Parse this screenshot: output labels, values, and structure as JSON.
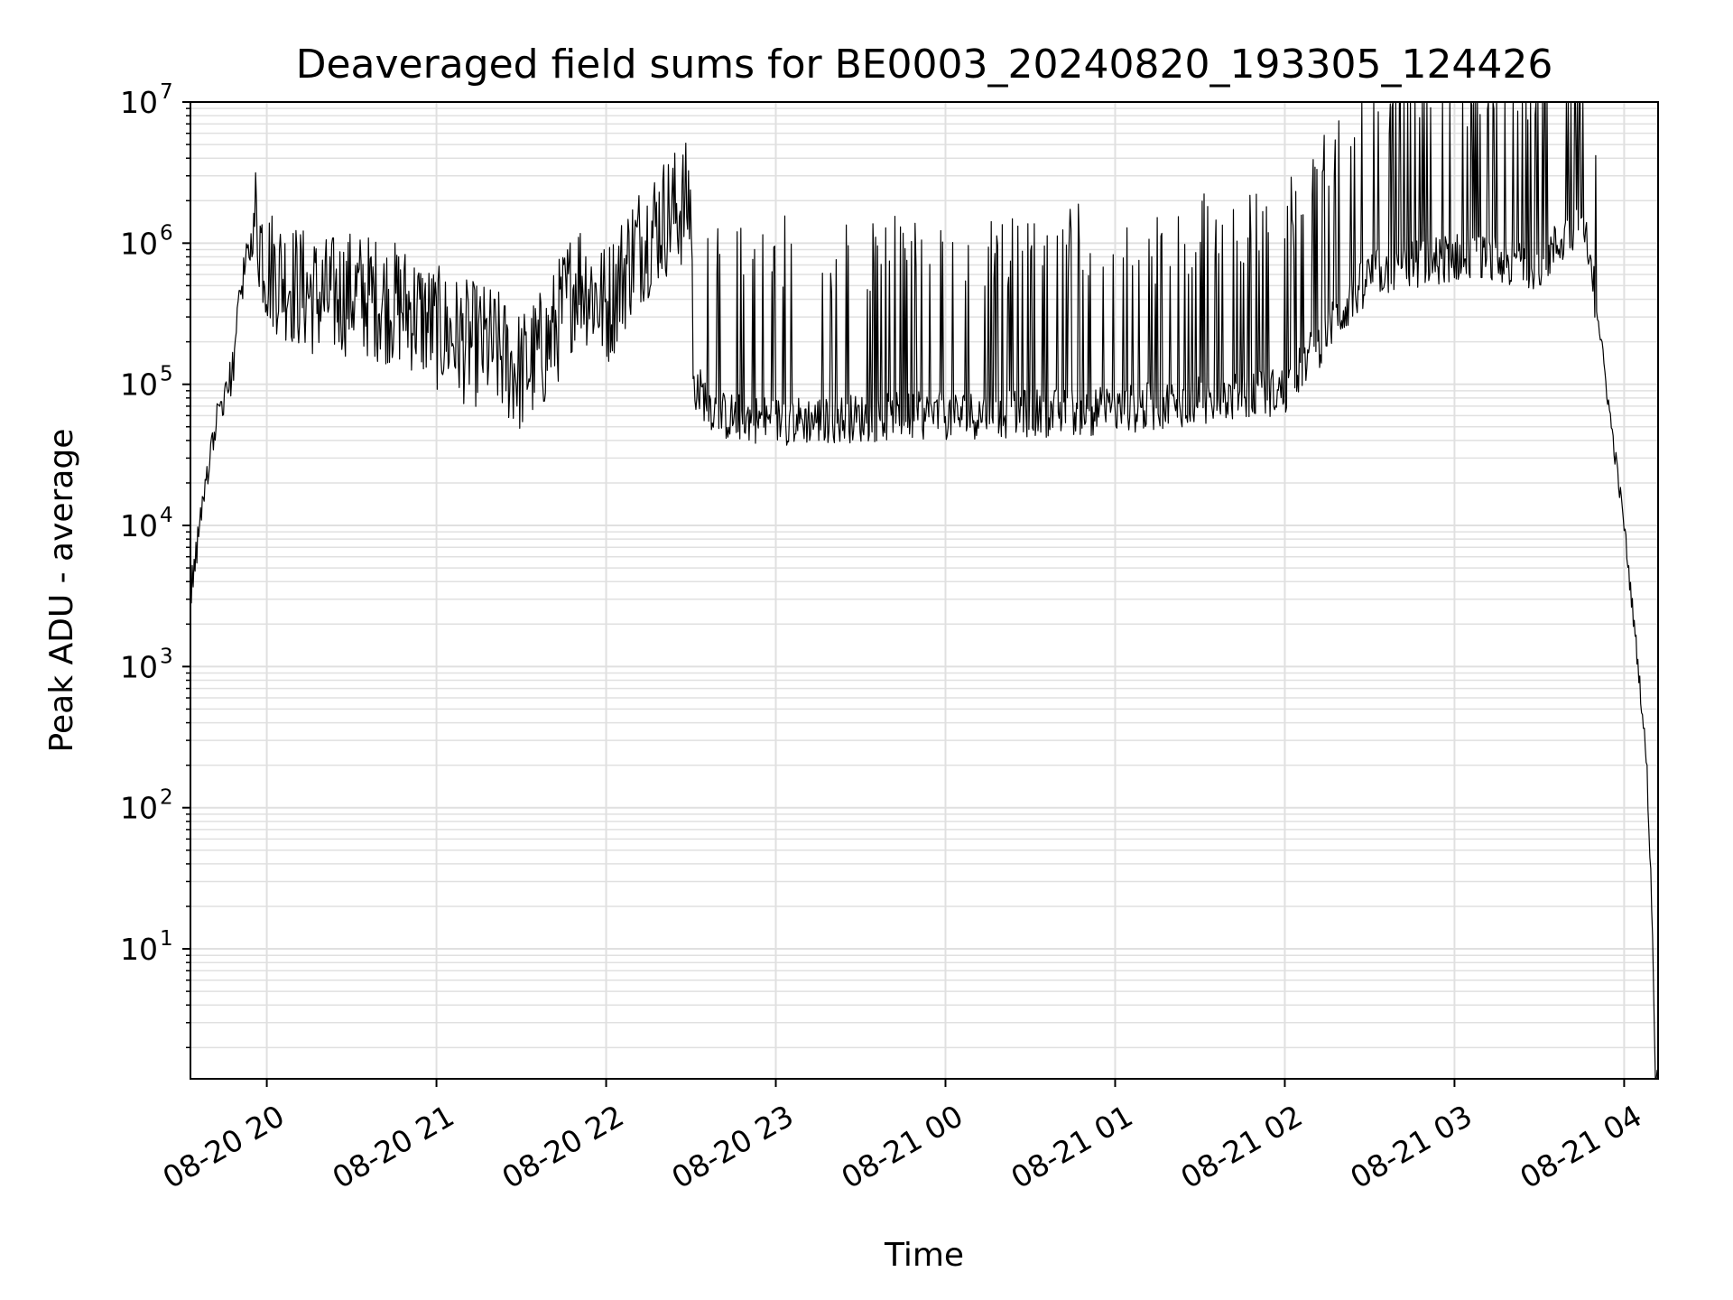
{
  "chart_data": {
    "type": "line",
    "title": "Deaveraged field sums for BE0003_20240820_193305_124426",
    "xlabel": "Time",
    "ylabel": "Peak ADU - average",
    "yscale": "log",
    "ylim": [
      1.2,
      10000000
    ],
    "xlim": [
      "2024-08-20 19:33",
      "2024-08-21 04:12"
    ],
    "grid": true,
    "line_color": "#000000",
    "grid_color": "#e0e0e0",
    "x_ticks": [
      {
        "label": "08-20 20",
        "t": "2024-08-20 20:00"
      },
      {
        "label": "08-20 21",
        "t": "2024-08-20 21:00"
      },
      {
        "label": "08-20 22",
        "t": "2024-08-20 22:00"
      },
      {
        "label": "08-20 23",
        "t": "2024-08-20 23:00"
      },
      {
        "label": "08-21 00",
        "t": "2024-08-21 00:00"
      },
      {
        "label": "08-21 01",
        "t": "2024-08-21 01:00"
      },
      {
        "label": "08-21 02",
        "t": "2024-08-21 02:00"
      },
      {
        "label": "08-21 03",
        "t": "2024-08-21 03:00"
      },
      {
        "label": "08-21 04",
        "t": "2024-08-21 04:00"
      }
    ],
    "y_ticks": [
      {
        "base": "10",
        "exp": "1",
        "value": 10
      },
      {
        "base": "10",
        "exp": "2",
        "value": 100
      },
      {
        "base": "10",
        "exp": "3",
        "value": 1000
      },
      {
        "base": "10",
        "exp": "4",
        "value": 10000
      },
      {
        "base": "10",
        "exp": "5",
        "value": 100000
      },
      {
        "base": "10",
        "exp": "6",
        "value": 1000000
      },
      {
        "base": "10",
        "exp": "7",
        "value": 10000000
      }
    ],
    "series": [
      {
        "points": [
          [
            "2024-08-20 19:33",
            3500
          ],
          [
            "2024-08-20 19:36",
            8000
          ],
          [
            "2024-08-20 19:39",
            20000
          ],
          [
            "2024-08-20 19:42",
            50000
          ],
          [
            "2024-08-20 19:45",
            90000
          ],
          [
            "2024-08-20 19:48",
            120000
          ],
          [
            "2024-08-20 19:51",
            500000
          ],
          [
            "2024-08-20 19:54",
            900000
          ],
          [
            "2024-08-20 19:56",
            1500000
          ],
          [
            "2024-08-20 20:00",
            700000
          ],
          [
            "2024-08-20 20:10",
            500000
          ],
          [
            "2024-08-20 20:20",
            400000
          ],
          [
            "2024-08-20 20:30",
            450000
          ],
          [
            "2024-08-20 20:40",
            400000
          ],
          [
            "2024-08-20 20:50",
            350000
          ],
          [
            "2024-08-20 21:00",
            250000
          ],
          [
            "2024-08-20 21:10",
            200000
          ],
          [
            "2024-08-20 21:20",
            180000
          ],
          [
            "2024-08-20 21:30",
            120000
          ],
          [
            "2024-08-20 21:40",
            200000
          ],
          [
            "2024-08-20 21:50",
            600000
          ],
          [
            "2024-08-20 22:00",
            350000
          ],
          [
            "2024-08-20 22:10",
            900000
          ],
          [
            "2024-08-20 22:20",
            1500000
          ],
          [
            "2024-08-20 22:30",
            2000000
          ],
          [
            "2024-08-20 22:31",
            100000
          ],
          [
            "2024-08-20 22:40",
            60000
          ],
          [
            "2024-08-20 23:00",
            55000
          ],
          [
            "2024-08-21 00:00",
            60000
          ],
          [
            "2024-08-21 01:00",
            65000
          ],
          [
            "2024-08-21 02:00",
            90000
          ],
          [
            "2024-08-21 02:30",
            600000
          ],
          [
            "2024-08-21 03:00",
            800000
          ],
          [
            "2024-08-21 03:30",
            700000
          ],
          [
            "2024-08-21 03:45",
            1500000
          ],
          [
            "2024-08-21 03:50",
            400000
          ],
          [
            "2024-08-21 03:55",
            60000
          ],
          [
            "2024-08-21 04:00",
            10000
          ],
          [
            "2024-08-21 04:05",
            1000
          ],
          [
            "2024-08-21 04:08",
            200
          ],
          [
            "2024-08-21 04:10",
            15
          ],
          [
            "2024-08-21 04:11",
            1.2
          ]
        ]
      }
    ]
  }
}
